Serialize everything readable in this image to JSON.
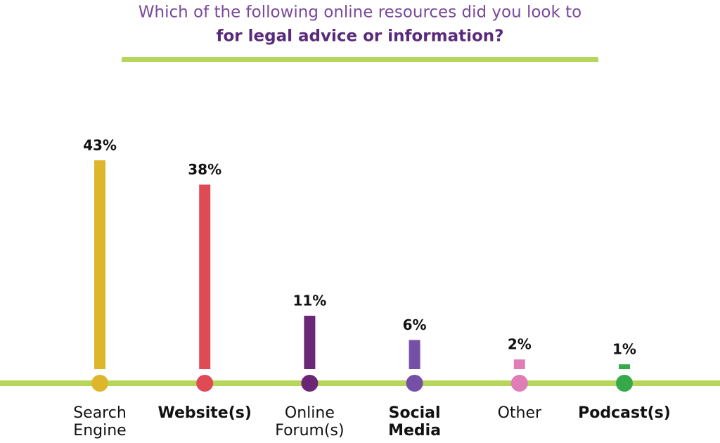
{
  "chart_data": {
    "type": "bar",
    "title": [
      "Which of the following online resources did you look to",
      "for legal advice or information?"
    ],
    "categories": [
      [
        "Search",
        "Engine"
      ],
      [
        "Website(s)"
      ],
      [
        "Online",
        "Forum(s)"
      ],
      [
        "Social",
        "Media"
      ],
      [
        "Other"
      ],
      [
        "Podcast(s)"
      ]
    ],
    "values": [
      43,
      38,
      11,
      6,
      2,
      1
    ],
    "value_labels": [
      "43%",
      "38%",
      "11%",
      "6%",
      "2%",
      "1%"
    ],
    "colors": [
      "#deb62b",
      "#e04a55",
      "#6a2775",
      "#7550a6",
      "#e07cb6",
      "#36aa4a"
    ]
  }
}
